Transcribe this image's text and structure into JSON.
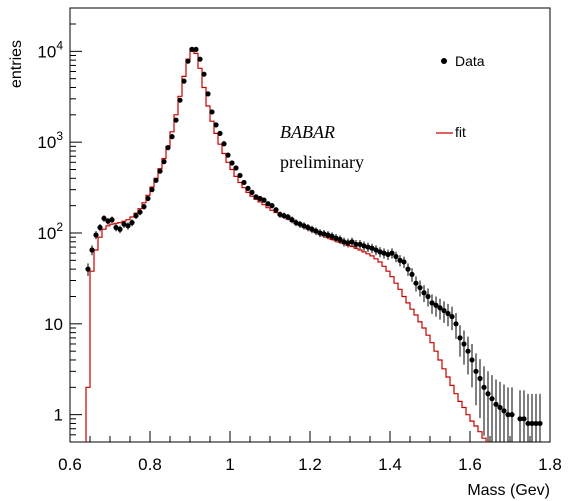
{
  "chart_data": {
    "type": "scatter",
    "title": "",
    "xlabel": "Mass (Gev)",
    "ylabel": "entries",
    "xlim": [
      0.6,
      1.8
    ],
    "ylim": [
      0.5,
      30000
    ],
    "y_scale": "log",
    "grid": false,
    "legend_position": "top-right",
    "x_ticks": [
      {
        "value": 0.6,
        "label": "0.6"
      },
      {
        "value": 0.8,
        "label": "0.8"
      },
      {
        "value": 1.0,
        "label": "1"
      },
      {
        "value": 1.2,
        "label": "1.2"
      },
      {
        "value": 1.4,
        "label": "1.4"
      },
      {
        "value": 1.6,
        "label": "1.6"
      },
      {
        "value": 1.8,
        "label": "1.8"
      }
    ],
    "y_ticks": [
      {
        "value": 1,
        "label": "1"
      },
      {
        "value": 10,
        "label": "10"
      },
      {
        "value": 100,
        "base": "10",
        "exp": "2"
      },
      {
        "value": 1000,
        "base": "10",
        "exp": "3"
      },
      {
        "value": 10000,
        "base": "10",
        "exp": "4"
      }
    ],
    "annotation": {
      "line1": "BABAR",
      "line2": "preliminary"
    },
    "series": [
      {
        "name": "Data",
        "kind": "points",
        "color": "#000000",
        "x": [
          0.645,
          0.655,
          0.665,
          0.675,
          0.685,
          0.695,
          0.705,
          0.715,
          0.725,
          0.735,
          0.745,
          0.755,
          0.765,
          0.775,
          0.785,
          0.795,
          0.805,
          0.815,
          0.825,
          0.835,
          0.845,
          0.855,
          0.865,
          0.875,
          0.885,
          0.895,
          0.905,
          0.915,
          0.925,
          0.935,
          0.945,
          0.955,
          0.965,
          0.975,
          0.985,
          0.995,
          1.005,
          1.015,
          1.025,
          1.035,
          1.045,
          1.055,
          1.065,
          1.075,
          1.085,
          1.095,
          1.105,
          1.115,
          1.125,
          1.135,
          1.145,
          1.155,
          1.165,
          1.175,
          1.185,
          1.195,
          1.205,
          1.215,
          1.225,
          1.235,
          1.245,
          1.255,
          1.265,
          1.275,
          1.285,
          1.295,
          1.305,
          1.315,
          1.325,
          1.335,
          1.345,
          1.355,
          1.365,
          1.375,
          1.385,
          1.395,
          1.405,
          1.415,
          1.425,
          1.435,
          1.445,
          1.455,
          1.465,
          1.475,
          1.485,
          1.495,
          1.505,
          1.515,
          1.525,
          1.535,
          1.545,
          1.555,
          1.565,
          1.575,
          1.585,
          1.595,
          1.605,
          1.615,
          1.625,
          1.635,
          1.645,
          1.655,
          1.665,
          1.675,
          1.685,
          1.695,
          1.705,
          1.725,
          1.735,
          1.745,
          1.755,
          1.765,
          1.775
        ],
        "y": [
          40,
          65,
          95,
          115,
          145,
          135,
          140,
          115,
          110,
          125,
          120,
          130,
          155,
          170,
          195,
          240,
          300,
          380,
          480,
          610,
          870,
          1150,
          1750,
          2900,
          4700,
          7800,
          10500,
          10500,
          8200,
          5600,
          3400,
          2150,
          1550,
          1250,
          960,
          720,
          590,
          520,
          430,
          360,
          310,
          280,
          250,
          240,
          230,
          210,
          200,
          180,
          160,
          155,
          150,
          140,
          130,
          125,
          120,
          115,
          110,
          105,
          100,
          98,
          95,
          92,
          88,
          85,
          80,
          78,
          80,
          75,
          75,
          72,
          70,
          68,
          65,
          62,
          60,
          58,
          60,
          55,
          50,
          48,
          40,
          35,
          28,
          25,
          22,
          20,
          17,
          16,
          15,
          14,
          13,
          12,
          10,
          7,
          6,
          5,
          4,
          3,
          2.5,
          2,
          1.7,
          1.5,
          1.3,
          1.2,
          1.1,
          1.0,
          1.0,
          0.9,
          0.9,
          0.8,
          0.8,
          0.8,
          0.8
        ]
      },
      {
        "name": "fit",
        "kind": "histogram",
        "color": "#cc0000",
        "x_edges_start": 0.63,
        "bin_width": 0.01,
        "y": [
          0.3,
          2,
          38,
          65,
          90,
          110,
          120,
          125,
          128,
          130,
          135,
          140,
          150,
          165,
          185,
          215,
          260,
          320,
          400,
          510,
          660,
          900,
          1300,
          2000,
          3200,
          5300,
          8200,
          10800,
          9500,
          6500,
          4000,
          2500,
          1700,
          1250,
          950,
          750,
          600,
          500,
          420,
          360,
          315,
          280,
          255,
          235,
          220,
          205,
          190,
          178,
          168,
          158,
          150,
          142,
          135,
          128,
          122,
          116,
          111,
          106,
          101,
          97,
          93,
          89,
          85,
          82,
          79,
          76,
          73,
          71,
          68,
          65,
          62,
          59,
          56,
          52,
          48,
          43,
          38,
          33,
          28,
          24,
          20,
          17,
          14.5,
          12.5,
          10.5,
          9,
          7.5,
          6.2,
          5,
          4,
          3.2,
          2.6,
          2.1,
          1.7,
          1.4,
          1.2,
          1.0,
          0.85,
          0.75,
          0.65,
          0.55,
          0.5
        ]
      }
    ]
  }
}
